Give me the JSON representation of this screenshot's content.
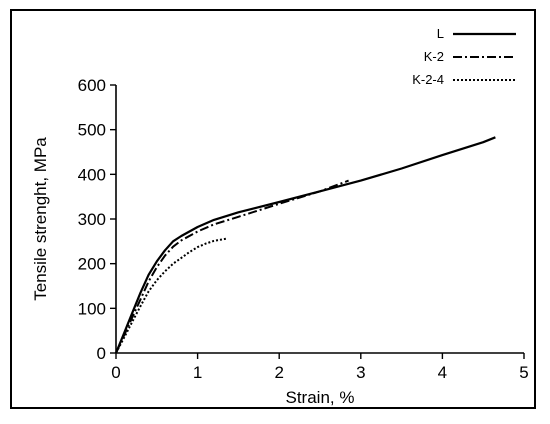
{
  "chart_data": {
    "type": "line",
    "xlabel": "Strain, %",
    "ylabel": "Tensile strenght, MPa",
    "xlim": [
      0,
      5
    ],
    "ylim": [
      0,
      600
    ],
    "x_ticks": [
      "0",
      "1",
      "2",
      "3",
      "4",
      "5"
    ],
    "y_ticks": [
      "0",
      "100",
      "200",
      "300",
      "400",
      "500",
      "600"
    ],
    "grid": false,
    "legend_position": "top-right",
    "series": [
      {
        "name": "L",
        "style": "solid",
        "x": [
          0,
          0.1,
          0.2,
          0.3,
          0.4,
          0.5,
          0.6,
          0.7,
          0.8,
          1.0,
          1.2,
          1.5,
          2.0,
          2.5,
          3.0,
          3.5,
          4.0,
          4.5,
          4.65
        ],
        "y": [
          0,
          45,
          90,
          135,
          175,
          205,
          230,
          250,
          262,
          282,
          298,
          315,
          338,
          362,
          386,
          413,
          443,
          472,
          483
        ]
      },
      {
        "name": "K-2",
        "style": "dashdot",
        "x": [
          0,
          0.1,
          0.2,
          0.3,
          0.4,
          0.5,
          0.6,
          0.7,
          0.8,
          1.0,
          1.2,
          1.5,
          2.0,
          2.5,
          2.85
        ],
        "y": [
          0,
          40,
          80,
          120,
          160,
          192,
          218,
          238,
          252,
          272,
          288,
          305,
          334,
          362,
          386
        ]
      },
      {
        "name": "K-2-4",
        "style": "dotted",
        "x": [
          0,
          0.1,
          0.2,
          0.3,
          0.4,
          0.5,
          0.6,
          0.7,
          0.8,
          0.9,
          1.0,
          1.1,
          1.2,
          1.35
        ],
        "y": [
          0,
          35,
          70,
          105,
          138,
          163,
          183,
          200,
          213,
          226,
          237,
          245,
          251,
          256
        ]
      }
    ]
  }
}
